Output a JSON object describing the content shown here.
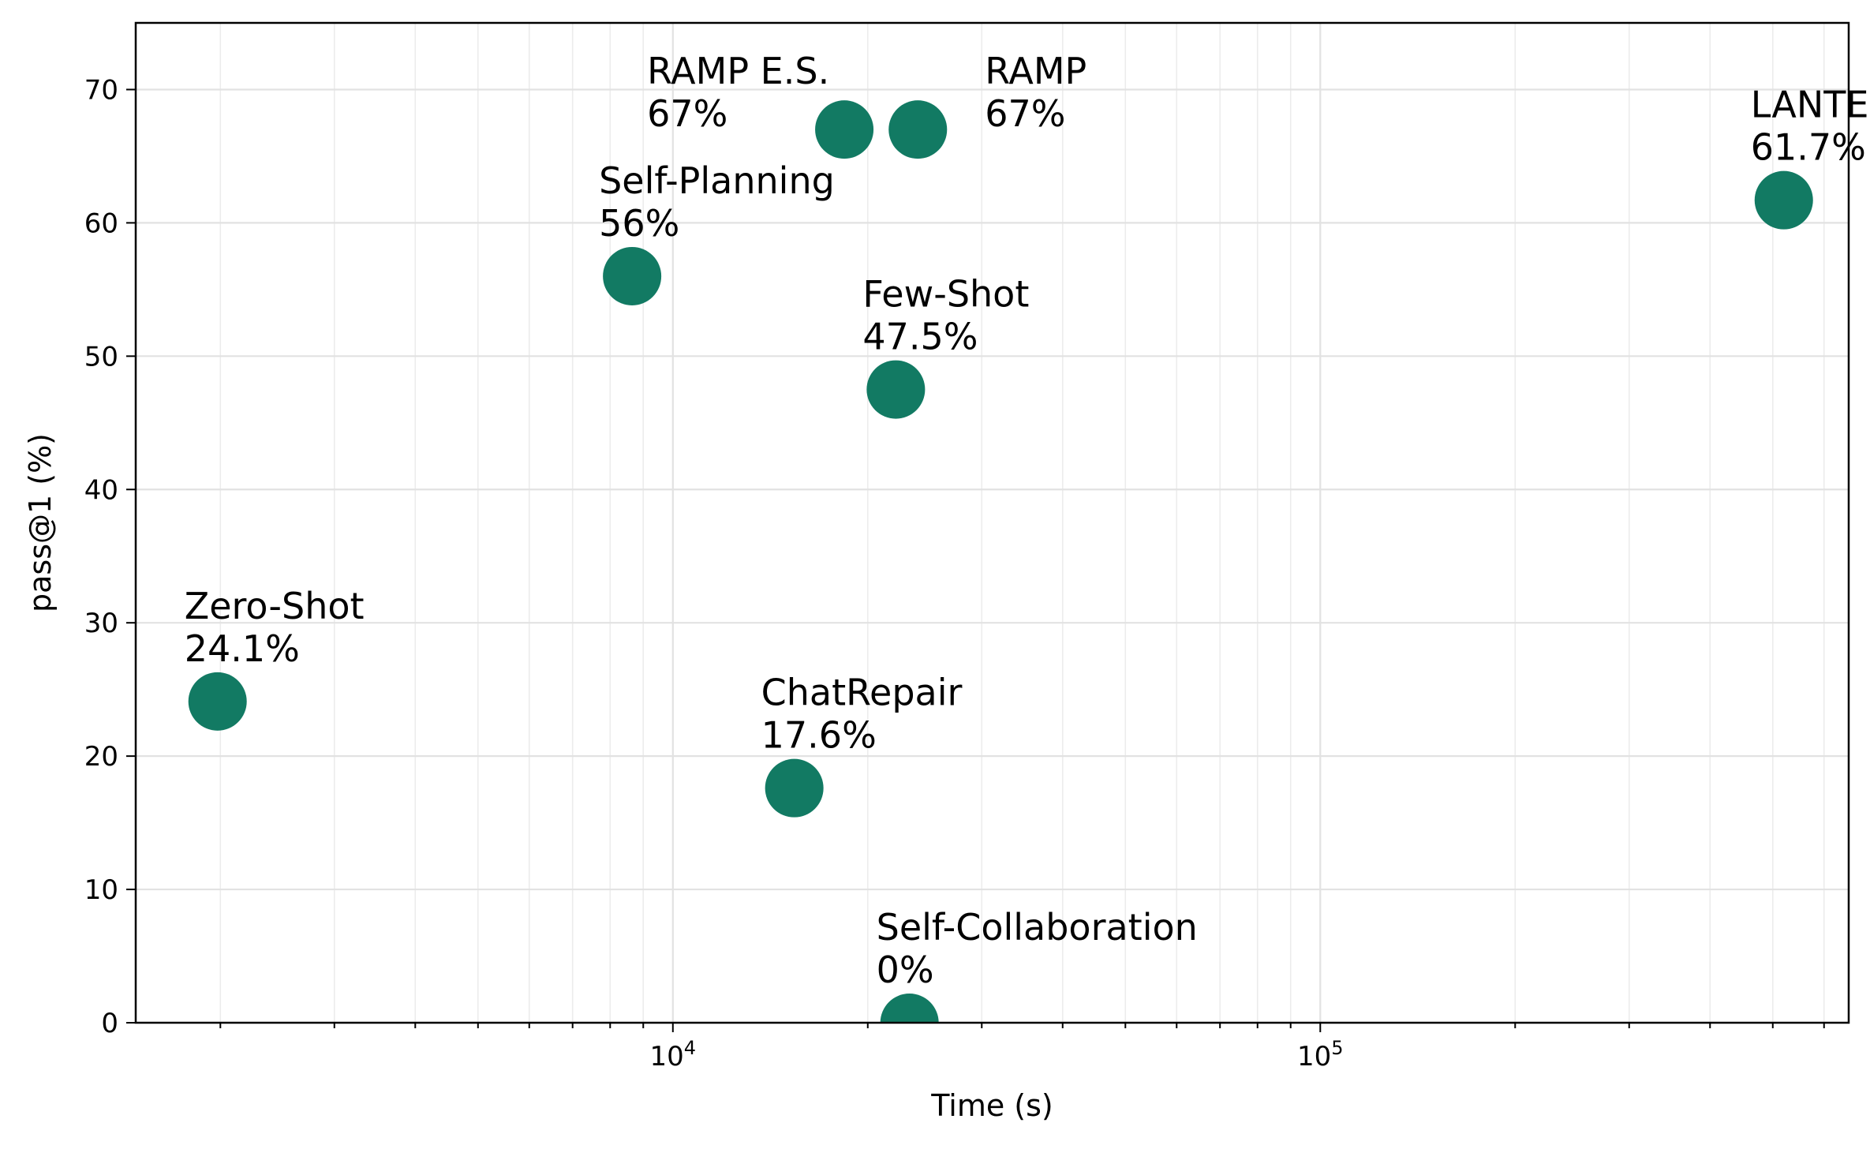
{
  "chart_data": {
    "type": "scatter",
    "title": "",
    "xlabel": "Time (s)",
    "ylabel": "pass@1 (%)",
    "xscale": "log",
    "xlim": [
      1480,
      655000
    ],
    "ylim": [
      0,
      75
    ],
    "x_tick_labels": [
      {
        "value": 10000,
        "base": "10",
        "exp": "4"
      },
      {
        "value": 100000,
        "base": "10",
        "exp": "5"
      }
    ],
    "y_ticks": [
      0,
      10,
      20,
      30,
      40,
      50,
      60,
      70
    ],
    "y_tick_labels": [
      "0",
      "10",
      "20",
      "30",
      "40",
      "50",
      "60",
      "70"
    ],
    "grid": true,
    "marker_color": "#127a63",
    "points": [
      {
        "label": "Zero-Shot",
        "value_label": "24.1%",
        "x": 1980,
        "y": 24.1,
        "label_side": "above"
      },
      {
        "label": "Self-Planning",
        "value_label": "56%",
        "x": 8650,
        "y": 56,
        "label_side": "above"
      },
      {
        "label": "RAMP E.S.",
        "value_label": "67%",
        "x": 18400,
        "y": 67,
        "label_side": "left"
      },
      {
        "label": "RAMP",
        "value_label": "67%",
        "x": 23900,
        "y": 67,
        "label_side": "right"
      },
      {
        "label": "Few-Shot",
        "value_label": "47.5%",
        "x": 22100,
        "y": 47.5,
        "label_side": "above"
      },
      {
        "label": "ChatRepair",
        "value_label": "17.6%",
        "x": 15400,
        "y": 17.6,
        "label_side": "above"
      },
      {
        "label": "Self-Collaboration",
        "value_label": "0%",
        "x": 23200,
        "y": 0,
        "label_side": "above"
      },
      {
        "label": "LANTERN",
        "value_label": "61.7%",
        "x": 520000,
        "y": 61.7,
        "label_side": "above"
      }
    ]
  }
}
